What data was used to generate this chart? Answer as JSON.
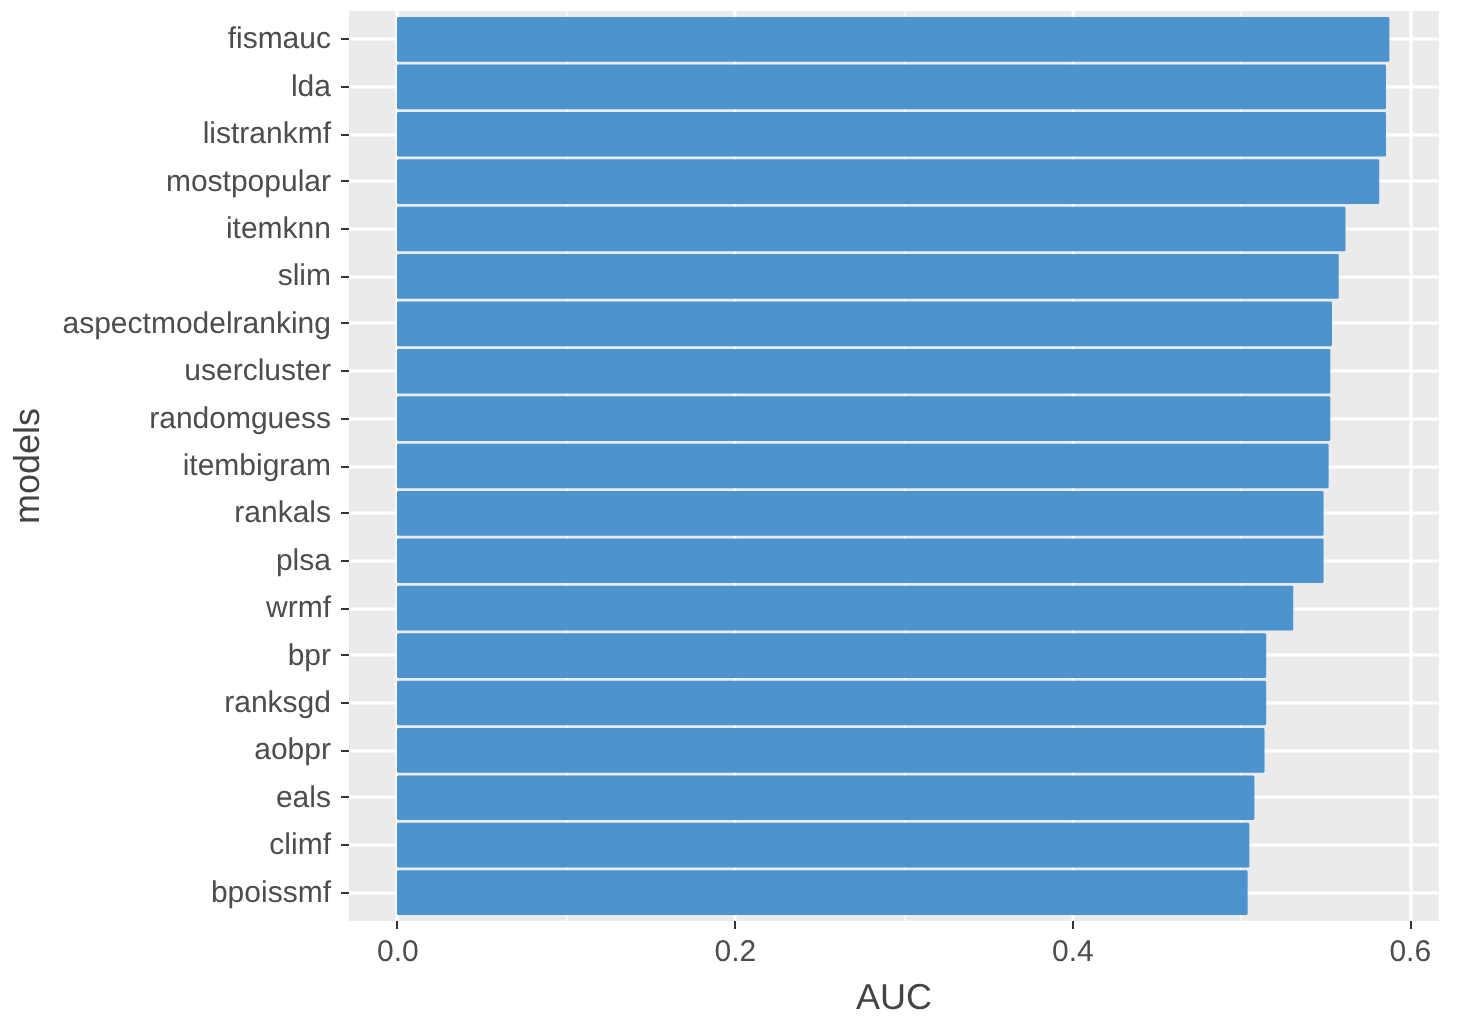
{
  "chart_data": {
    "type": "bar",
    "orientation": "horizontal",
    "xlabel": "AUC",
    "ylabel": "models",
    "categories": [
      "fismauc",
      "lda",
      "listrankmf",
      "mostpopular",
      "itemknn",
      "slim",
      "aspectmodelranking",
      "usercluster",
      "randomguess",
      "itembigram",
      "rankals",
      "plsa",
      "wrmf",
      "bpr",
      "ranksgd",
      "aobpr",
      "eals",
      "climf",
      "bpoissmf"
    ],
    "values": [
      0.587,
      0.585,
      0.585,
      0.581,
      0.561,
      0.557,
      0.553,
      0.552,
      0.552,
      0.551,
      0.548,
      0.548,
      0.53,
      0.514,
      0.514,
      0.513,
      0.507,
      0.504,
      0.503
    ],
    "color": "#4d94cf",
    "xlim": [
      -0.029,
      0.617
    ],
    "xticks": [
      {
        "value": 0,
        "label": "0.0"
      },
      {
        "value": 0.2,
        "label": "0.2"
      },
      {
        "value": 0.4,
        "label": "0.4"
      },
      {
        "value": 0.6,
        "label": "0.6"
      }
    ],
    "grid": true
  }
}
